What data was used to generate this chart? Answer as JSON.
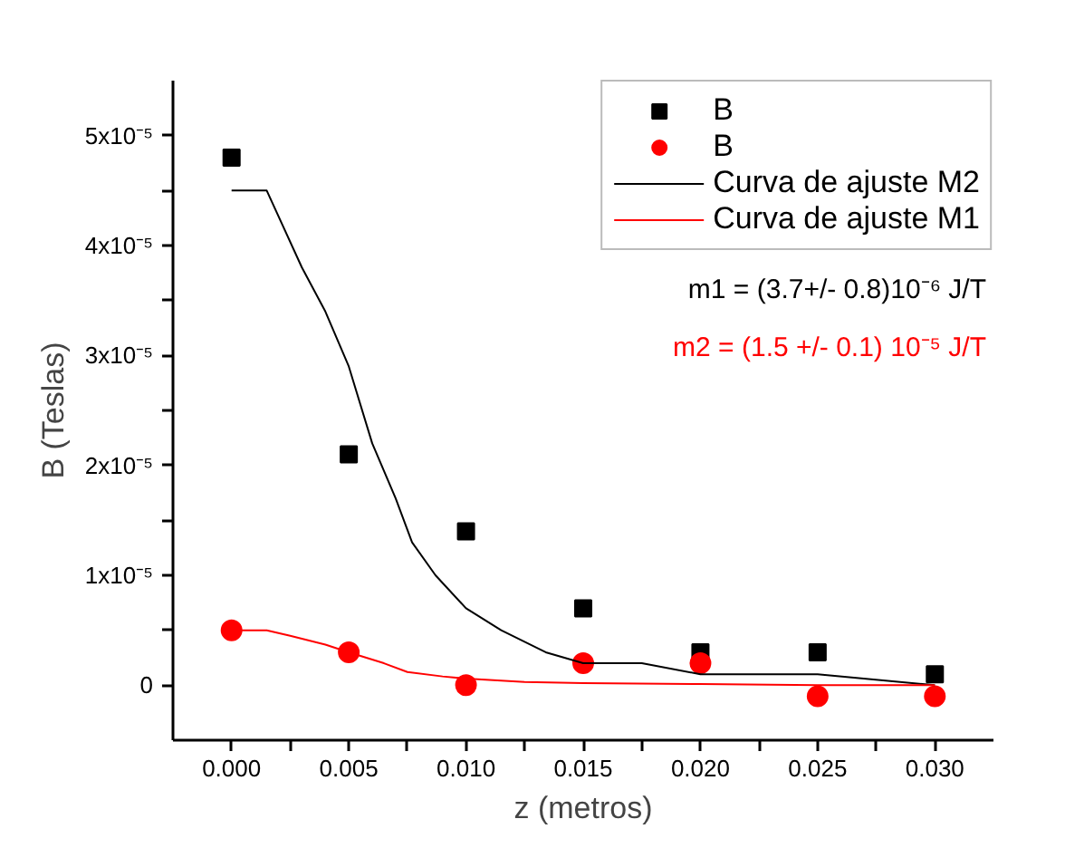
{
  "chart_data": {
    "type": "scatter",
    "xlabel": "z (metros)",
    "ylabel": "B (Teslas)",
    "xlim": [
      -0.0025,
      0.0325
    ],
    "ylim": [
      -5e-06,
      5.5e-05
    ],
    "xticks": [
      {
        "value": 0,
        "label": "0.000"
      },
      {
        "value": 0.0025,
        "label": null
      },
      {
        "value": 0.005,
        "label": "0.005"
      },
      {
        "value": 0.0075,
        "label": null
      },
      {
        "value": 0.01,
        "label": "0.010"
      },
      {
        "value": 0.0125,
        "label": null
      },
      {
        "value": 0.015,
        "label": "0.015"
      },
      {
        "value": 0.0175,
        "label": null
      },
      {
        "value": 0.02,
        "label": "0.020"
      },
      {
        "value": 0.0225,
        "label": null
      },
      {
        "value": 0.025,
        "label": "0.025"
      },
      {
        "value": 0.0275,
        "label": null
      },
      {
        "value": 0.03,
        "label": "0.030"
      }
    ],
    "yticks": [
      {
        "value": 0,
        "label": "0"
      },
      {
        "value": 5e-06,
        "label": null
      },
      {
        "value": 1e-05,
        "label": "1x10⁻⁵"
      },
      {
        "value": 1.5e-05,
        "label": null
      },
      {
        "value": 2e-05,
        "label": "2x10⁻⁵"
      },
      {
        "value": 2.5e-05,
        "label": null
      },
      {
        "value": 3e-05,
        "label": "3x10⁻⁵"
      },
      {
        "value": 3.5e-05,
        "label": null
      },
      {
        "value": 4e-05,
        "label": "4x10⁻⁵"
      },
      {
        "value": 4.5e-05,
        "label": null
      },
      {
        "value": 5e-05,
        "label": "5x10⁻⁵"
      }
    ],
    "x": [
      0,
      0.005,
      0.01,
      0.015,
      0.02,
      0.025,
      0.03
    ],
    "series": [
      {
        "name": "B",
        "color": "#000000",
        "marker": "square",
        "values": [
          4.8e-05,
          2.1e-05,
          1.4e-05,
          7e-06,
          3e-06,
          3e-06,
          1e-06
        ]
      },
      {
        "name": "B",
        "color": "#ff0000",
        "marker": "circle",
        "values": [
          5e-06,
          3e-06,
          0,
          2e-06,
          2e-06,
          -1e-06,
          -1e-06
        ]
      },
      {
        "name": "Curva de ajuste M2",
        "type": "line",
        "color": "#000000",
        "marker": "none",
        "x": [
          0,
          0.0015,
          0.003,
          0.004,
          0.005,
          0.006,
          0.007,
          0.0077,
          0.0087,
          0.01,
          0.0115,
          0.0134,
          0.015,
          0.0175,
          0.02,
          0.025,
          0.03
        ],
        "values": [
          4.5e-05,
          4.5e-05,
          3.8e-05,
          3.4e-05,
          2.9e-05,
          2.2e-05,
          1.7e-05,
          1.3e-05,
          1e-05,
          7e-06,
          5e-06,
          3e-06,
          2e-06,
          2e-06,
          1e-06,
          1e-06,
          0
        ]
      },
      {
        "name": "Curva de ajuste M1",
        "type": "line",
        "color": "#ff0000",
        "marker": "none",
        "x": [
          0,
          0.0015,
          0.0025,
          0.004,
          0.005,
          0.0065,
          0.0075,
          0.009,
          0.01,
          0.0125,
          0.015,
          0.02,
          0.025,
          0.03
        ],
        "values": [
          5e-06,
          5e-06,
          4.5e-06,
          3.7e-06,
          3e-06,
          2e-06,
          1.2e-06,
          8e-07,
          6e-07,
          3e-07,
          2e-07,
          1e-07,
          0,
          0
        ]
      }
    ],
    "annotations": [
      "m1 = (3.7+/- 0.8)10⁻⁶ J/T",
      "m2 = (1.5 +/- 0.1) 10⁻⁵ J/T"
    ],
    "legend": "top right",
    "grid": false
  }
}
